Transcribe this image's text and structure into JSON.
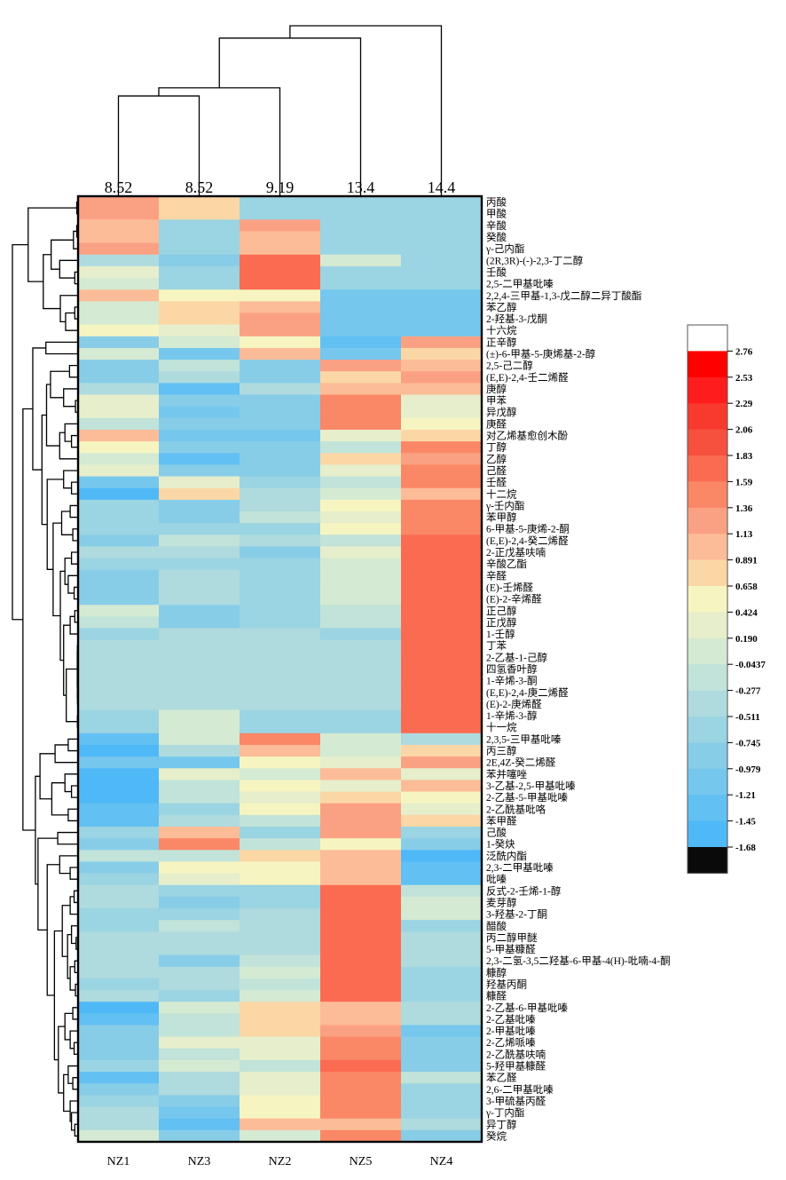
{
  "chart_data": {
    "type": "heatmap",
    "title": "",
    "xlabel": "",
    "ylabel": "",
    "columns": [
      "NZ1",
      "NZ3",
      "NZ2",
      "NZ5",
      "NZ4"
    ],
    "column_cluster_labels": [
      "8.52",
      "8.52",
      "9.19",
      "13.4",
      "14.4"
    ],
    "rows": [
      "丙酸",
      "甲酸",
      "辛酸",
      "癸酸",
      "γ-己内酯",
      "(2R,3R)-(-)-2,3-丁二醇",
      "壬酸",
      "2,5-二甲基吡嗪",
      "2,2,4-三甲基-1,3-戊二醇二异丁酸酯",
      "苯乙醇",
      "2-羟基-3-戊酮",
      "十六烷",
      "正辛醇",
      "(±)-6-甲基-5-庚烯基-2-醇",
      "2,5-己二醇",
      "(E,E)-2,4-壬二烯醛",
      "庚醇",
      "甲苯",
      "异戊醇",
      "庚醛",
      "对乙烯基愈创木酚",
      "丁醇",
      "乙醇",
      "己醛",
      "壬醛",
      "十二烷",
      "γ-壬内酯",
      "苯甲醇",
      "6-甲基-5-庚烯-2-酮",
      "(E,E)-2,4-癸二烯醛",
      "2-正戊基呋喃",
      "辛酸乙酯",
      "辛醛",
      "(E)-壬烯醛",
      "(E)-2-辛烯醛",
      "正己醇",
      "正戊醇",
      "1-壬醇",
      "丁苯",
      "2-乙基-1-己醇",
      "四氢香叶醇",
      "1-辛烯-3-酮",
      "(E,E)-2,4-庚二烯醛",
      "(E)-2-庚烯醛",
      "1-辛烯-3-醇",
      "十一烷",
      "2,3,5-三甲基吡嗪",
      "丙三醇",
      "2E,4Z-癸二烯醛",
      "苯并噻唑",
      "3-乙基-2,5-甲基吡嗪",
      "2-乙基-5-甲基吡嗪",
      "2-乙酰基吡咯",
      "苯甲醛",
      "己酸",
      "1-癸炔",
      "泛酰内酯",
      "2,3-二甲基吡嗪",
      "吡嗪",
      "反式-2-壬烯-1-醇",
      "麦芽醇",
      "3-羟基-2-丁酮",
      "醋酸",
      "丙二醇甲醚",
      "5-甲基糠醛",
      "2,3-二氢-3,5二羟基-6-甲基-4(H)-吡喃-4-酮",
      "糠醇",
      "羟基丙酮",
      "糠醛",
      "2-乙基-6-甲基吡嗪",
      "2-乙基吡嗪",
      "2-甲基吡嗪",
      "2-乙烯哌嗪",
      "2-乙酰基呋喃",
      "5-羟甲基糠醛",
      "苯乙醛",
      "2,6-二甲基吡嗪",
      "3-甲硫基丙醛",
      "γ-丁内酯",
      "异丁醇",
      "癸烷"
    ],
    "values": [
      [
        1.25,
        0.77,
        -0.63,
        -0.63,
        -0.63
      ],
      [
        1.25,
        0.77,
        -0.63,
        -0.63,
        -0.63
      ],
      [
        1.01,
        -0.63,
        1.25,
        -0.63,
        -0.63
      ],
      [
        1.01,
        -0.63,
        1.01,
        -0.63,
        -0.63
      ],
      [
        1.25,
        -0.63,
        1.01,
        -0.63,
        -0.63
      ],
      [
        -0.39,
        -0.86,
        1.71,
        0.07,
        -0.63
      ],
      [
        0.31,
        -0.63,
        1.71,
        -0.63,
        -0.63
      ],
      [
        0.07,
        -0.63,
        1.71,
        -0.63,
        -0.63
      ],
      [
        1.01,
        0.54,
        0.54,
        -1.09,
        -1.09
      ],
      [
        0.07,
        0.77,
        1.01,
        -1.09,
        -1.09
      ],
      [
        0.07,
        0.77,
        1.25,
        -1.09,
        -1.09
      ],
      [
        0.54,
        0.31,
        1.25,
        -1.09,
        -1.09
      ],
      [
        -0.86,
        0.07,
        0.54,
        -1.33,
        1.25
      ],
      [
        0.07,
        -1.09,
        1.01,
        -1.09,
        0.77
      ],
      [
        -0.86,
        -0.16,
        -0.86,
        1.25,
        1.01
      ],
      [
        -0.86,
        -0.39,
        -0.86,
        0.77,
        1.25
      ],
      [
        -0.39,
        -1.33,
        -0.39,
        1.01,
        1.01
      ],
      [
        0.31,
        -0.86,
        -0.86,
        1.48,
        0.31
      ],
      [
        0.31,
        -1.09,
        -0.86,
        1.48,
        0.31
      ],
      [
        -0.16,
        -0.86,
        -0.86,
        1.48,
        0.54
      ],
      [
        1.01,
        -1.09,
        -1.09,
        0.31,
        0.77
      ],
      [
        0.54,
        -0.86,
        -0.86,
        -0.16,
        1.48
      ],
      [
        0.07,
        -1.33,
        -0.86,
        0.77,
        1.25
      ],
      [
        0.31,
        -0.86,
        -0.86,
        0.31,
        1.48
      ],
      [
        -1.09,
        0.31,
        -0.63,
        -0.16,
        1.48
      ],
      [
        -1.56,
        0.77,
        -0.39,
        0.07,
        1.01
      ],
      [
        -0.63,
        -0.86,
        -0.39,
        0.54,
        1.48
      ],
      [
        -0.63,
        -0.86,
        -0.16,
        0.31,
        1.48
      ],
      [
        -0.63,
        -0.63,
        -0.63,
        0.54,
        1.48
      ],
      [
        -0.86,
        -0.16,
        -0.39,
        -0.16,
        1.71
      ],
      [
        -0.39,
        -0.39,
        -0.86,
        0.31,
        1.71
      ],
      [
        -0.63,
        -0.63,
        -0.63,
        0.07,
        1.71
      ],
      [
        -0.86,
        -0.39,
        -0.63,
        0.07,
        1.71
      ],
      [
        -0.86,
        -0.39,
        -0.63,
        0.07,
        1.71
      ],
      [
        -0.86,
        -0.39,
        -0.63,
        0.07,
        1.71
      ],
      [
        0.07,
        -0.86,
        -0.63,
        -0.16,
        1.71
      ],
      [
        -0.16,
        -0.86,
        -0.63,
        -0.16,
        1.71
      ],
      [
        -0.63,
        -0.39,
        -0.39,
        -0.63,
        1.71
      ],
      [
        -0.39,
        -0.39,
        -0.39,
        -0.39,
        1.71
      ],
      [
        -0.39,
        -0.39,
        -0.39,
        -0.39,
        1.71
      ],
      [
        -0.39,
        -0.39,
        -0.39,
        -0.39,
        1.71
      ],
      [
        -0.39,
        -0.39,
        -0.39,
        -0.39,
        1.71
      ],
      [
        -0.39,
        -0.39,
        -0.39,
        -0.39,
        1.71
      ],
      [
        -0.39,
        -0.39,
        -0.39,
        -0.39,
        1.71
      ],
      [
        -0.63,
        0.07,
        -0.63,
        -0.63,
        1.71
      ],
      [
        -0.63,
        0.07,
        -0.63,
        -0.63,
        1.71
      ],
      [
        -1.33,
        0.07,
        1.48,
        0.07,
        -0.39
      ],
      [
        -1.56,
        -0.39,
        1.01,
        0.07,
        0.77
      ],
      [
        -1.09,
        -1.09,
        0.54,
        0.31,
        1.25
      ],
      [
        -1.56,
        0.31,
        0.07,
        1.01,
        0.31
      ],
      [
        -1.56,
        -0.16,
        0.54,
        0.31,
        1.01
      ],
      [
        -1.56,
        -0.16,
        0.31,
        0.77,
        0.54
      ],
      [
        -1.33,
        -0.63,
        0.54,
        1.25,
        0.31
      ],
      [
        -1.33,
        -0.39,
        -0.16,
        1.25,
        0.77
      ],
      [
        -0.63,
        1.01,
        -0.63,
        1.25,
        -0.63
      ],
      [
        -0.86,
        1.48,
        -0.16,
        0.54,
        -0.86
      ],
      [
        -0.16,
        -0.16,
        0.77,
        1.01,
        -1.56
      ],
      [
        -0.86,
        0.54,
        0.54,
        1.01,
        -1.33
      ],
      [
        -0.63,
        0.31,
        0.54,
        1.01,
        -1.33
      ],
      [
        -0.39,
        -0.63,
        -0.63,
        1.71,
        -0.16
      ],
      [
        -0.39,
        -0.86,
        -0.63,
        1.71,
        0.07
      ],
      [
        -0.63,
        -0.63,
        -0.39,
        1.71,
        0.07
      ],
      [
        -0.63,
        -0.16,
        -0.39,
        1.71,
        -0.63
      ],
      [
        -0.39,
        -0.39,
        -0.39,
        1.71,
        -0.39
      ],
      [
        -0.39,
        -0.39,
        -0.39,
        1.71,
        -0.39
      ],
      [
        -0.39,
        -0.86,
        -0.16,
        1.71,
        -0.39
      ],
      [
        -0.39,
        -0.39,
        0.07,
        1.71,
        -0.63
      ],
      [
        -0.63,
        -0.39,
        -0.16,
        1.71,
        -0.63
      ],
      [
        -0.39,
        -0.63,
        0.07,
        1.71,
        -0.63
      ],
      [
        -1.56,
        0.07,
        0.77,
        1.01,
        -0.39
      ],
      [
        -1.33,
        -0.16,
        0.77,
        1.01,
        -0.39
      ],
      [
        -0.86,
        -0.16,
        0.77,
        1.25,
        -1.09
      ],
      [
        -0.86,
        0.31,
        0.31,
        1.48,
        -0.86
      ],
      [
        -0.86,
        -0.16,
        0.31,
        1.48,
        -0.86
      ],
      [
        -0.63,
        0.07,
        -0.16,
        1.71,
        -0.86
      ],
      [
        -1.33,
        -0.39,
        0.31,
        1.48,
        -0.16
      ],
      [
        -0.86,
        -0.39,
        0.31,
        1.48,
        -0.63
      ],
      [
        -0.63,
        -0.86,
        0.54,
        1.48,
        -0.63
      ],
      [
        -0.39,
        -1.09,
        0.54,
        1.48,
        -0.63
      ],
      [
        -0.39,
        -1.33,
        1.01,
        1.01,
        -0.39
      ],
      [
        0.07,
        -0.86,
        0.07,
        1.48,
        -0.86
      ]
    ],
    "legend": {
      "position": "right",
      "ticks": [
        2.76,
        2.53,
        2.29,
        2.06,
        1.83,
        1.59,
        1.36,
        1.13,
        0.891,
        0.658,
        0.424,
        0.19,
        -0.0437,
        -0.277,
        -0.511,
        -0.745,
        -0.979,
        -1.21,
        -1.45,
        -1.68
      ],
      "tick_labels": [
        "2.76",
        "2.53",
        "2.29",
        "2.06",
        "1.83",
        "1.59",
        "1.36",
        "1.13",
        "0.891",
        "0.658",
        "0.424",
        "0.190",
        "-0.0437",
        "-0.277",
        "-0.511",
        "-0.745",
        "-0.979",
        "-1.21",
        "-1.45",
        "-1.68"
      ],
      "colors": [
        "#FFFFFF",
        "#FF0000",
        "#FE1C1C",
        "#F83A2E",
        "#F6503E",
        "#FB6B52",
        "#FA8766",
        "#FBA183",
        "#FCBC97",
        "#FBD7A6",
        "#F6F5C1",
        "#E6EECB",
        "#D5EAD3",
        "#C1E3D9",
        "#AFDBDE",
        "#9BD4E2",
        "#88CDE8",
        "#76C7ED",
        "#62C0F3",
        "#4FB9F8",
        "#0A0A0A"
      ]
    },
    "column_dendrogram": {
      "root": "root",
      "nodes": {
        "root": {
          "h": 1.0,
          "c": [
            "cA",
            4
          ]
        },
        "cA": {
          "h": 0.927,
          "c": [
            "cB",
            3
          ]
        },
        "cB": {
          "h": 0.634,
          "c": [
            "cC",
            2
          ]
        },
        "cC": {
          "h": 0.586,
          "c": [
            0,
            1
          ]
        }
      }
    },
    "row_dendrogram": {
      "root": "root",
      "nodes": {
        "root": {
          "h": 1.0,
          "c": [
            "A",
            "B"
          ]
        },
        "A": {
          "h": 0.76,
          "c": [
            "a01",
            "Ay"
          ]
        },
        "a01": {
          "h": 0.02,
          "c": [
            0,
            1
          ]
        },
        "Ay": {
          "h": 0.53,
          "c": [
            "A1",
            "A2"
          ]
        },
        "A1": {
          "h": 0.41,
          "c": [
            "a234",
            "a567"
          ]
        },
        "a234": {
          "h": 0.07,
          "c": [
            "a23",
            4
          ]
        },
        "a23": {
          "h": 0.02,
          "c": [
            2,
            3
          ]
        },
        "a567": {
          "h": 0.28,
          "c": [
            5,
            "a67"
          ]
        },
        "a67": {
          "h": 0.05,
          "c": [
            6,
            7
          ]
        },
        "A2": {
          "h": 0.27,
          "c": [
            8,
            "a91011"
          ]
        },
        "a91011": {
          "h": 0.19,
          "c": [
            "a910",
            11
          ]
        },
        "a910": {
          "h": 0.05,
          "c": [
            9,
            10
          ]
        },
        "B": {
          "h": 0.84,
          "c": [
            "B1",
            "B2"
          ]
        },
        "B1": {
          "h": 0.69,
          "c": [
            "b1213",
            "B1b"
          ]
        },
        "b1213": {
          "h": 0.49,
          "c": [
            12,
            13
          ]
        },
        "B1b": {
          "h": 0.55,
          "c": [
            "B1c",
            "B1d"
          ]
        },
        "B1c": {
          "h": 0.48,
          "c": [
            "c1",
            "c2"
          ]
        },
        "c1": {
          "h": 0.42,
          "c": [
            "c1415",
            "c1618"
          ]
        },
        "c1415": {
          "h": 0.13,
          "c": [
            14,
            15
          ]
        },
        "c1618": {
          "h": 0.22,
          "c": [
            16,
            "c1718"
          ]
        },
        "c1718": {
          "h": 0.04,
          "c": [
            17,
            18
          ]
        },
        "c2": {
          "h": 0.28,
          "c": [
            "c1921",
            22
          ]
        },
        "c1921": {
          "h": 0.2,
          "c": [
            19,
            "c2021"
          ]
        },
        "c2021": {
          "h": 0.1,
          "c": [
            20,
            21
          ]
        },
        "B1d": {
          "h": 0.47,
          "c": [
            "d2325",
            "B1e"
          ]
        },
        "d2325": {
          "h": 0.22,
          "c": [
            23,
            "d2425"
          ]
        },
        "d2425": {
          "h": 0.1,
          "c": [
            24,
            25
          ]
        },
        "B1e": {
          "h": 0.38,
          "c": [
            "e2629",
            "B1f"
          ]
        },
        "e2629": {
          "h": 0.25,
          "c": [
            "e2627",
            "e2829"
          ]
        },
        "e2627": {
          "h": 0.12,
          "c": [
            26,
            27
          ]
        },
        "e2829": {
          "h": 0.08,
          "c": [
            28,
            29
          ]
        },
        "B1f": {
          "h": 0.27,
          "c": [
            "f1",
            "f2"
          ]
        },
        "f1": {
          "h": 0.2,
          "c": [
            "f3031",
            "f3234"
          ]
        },
        "f3031": {
          "h": 0.1,
          "c": [
            30,
            31
          ]
        },
        "f3234": {
          "h": 0.15,
          "c": [
            32,
            "f3334"
          ]
        },
        "f3334": {
          "h": 0.06,
          "c": [
            33,
            34
          ]
        },
        "f2": {
          "h": 0.22,
          "c": [
            "f3537",
            "f3845"
          ]
        },
        "f3537": {
          "h": 0.12,
          "c": [
            "f3536",
            37
          ]
        },
        "f3536": {
          "h": 0.05,
          "c": [
            35,
            36
          ]
        },
        "f3845": {
          "h": 0.18,
          "c": [
            "f3843",
            "f4445"
          ]
        },
        "f3843": {
          "h": 0.012,
          "c": [
            "f3839",
            "f4043"
          ]
        },
        "f3839": {
          "h": 0.01,
          "c": [
            38,
            39
          ]
        },
        "f4043": {
          "h": 0.01,
          "c": [
            "f4041",
            "f4243"
          ]
        },
        "f4041": {
          "h": 0.008,
          "c": [
            40,
            41
          ]
        },
        "f4243": {
          "h": 0.008,
          "c": [
            42,
            43
          ]
        },
        "f4445": {
          "h": 0.01,
          "c": [
            44,
            45
          ]
        },
        "B2": {
          "h": 0.65,
          "c": [
            "B2a",
            "B2b"
          ]
        },
        "B2a": {
          "h": 0.58,
          "c": [
            "g4648",
            "g4953"
          ]
        },
        "g4648": {
          "h": 0.35,
          "c": [
            "g4647",
            48
          ]
        },
        "g4647": {
          "h": 0.15,
          "c": [
            46,
            47
          ]
        },
        "g4953": {
          "h": 0.4,
          "c": [
            "g4951",
            "g5253"
          ]
        },
        "g4951": {
          "h": 0.2,
          "c": [
            49,
            "g5051"
          ]
        },
        "g5051": {
          "h": 0.1,
          "c": [
            50,
            51
          ]
        },
        "g5253": {
          "h": 0.15,
          "c": [
            52,
            53
          ]
        },
        "B2b": {
          "h": 0.61,
          "c": [
            "h5455",
            "B2c"
          ]
        },
        "h5455": {
          "h": 0.31,
          "c": [
            54,
            55
          ]
        },
        "B2c": {
          "h": 0.47,
          "c": [
            "h5658",
            "B2d"
          ]
        },
        "h5658": {
          "h": 0.28,
          "c": [
            56,
            "h5758"
          ]
        },
        "h5758": {
          "h": 0.12,
          "c": [
            57,
            58
          ]
        },
        "B2d": {
          "h": 0.36,
          "c": [
            "B2e",
            "B2f"
          ]
        },
        "B2e": {
          "h": 0.24,
          "c": [
            "i5961",
            "i6268"
          ]
        },
        "i5961": {
          "h": 0.12,
          "c": [
            "i5960",
            61
          ]
        },
        "i5960": {
          "h": 0.06,
          "c": [
            59,
            60
          ]
        },
        "i6268": {
          "h": 0.16,
          "c": [
            "i6264",
            "i6568"
          ]
        },
        "i6264": {
          "h": 0.1,
          "c": [
            62,
            "i6364"
          ]
        },
        "i6364": {
          "h": 0.03,
          "c": [
            63,
            64
          ]
        },
        "i6568": {
          "h": 0.12,
          "c": [
            "i6566",
            "i6768"
          ]
        },
        "i6566": {
          "h": 0.05,
          "c": [
            65,
            66
          ]
        },
        "i6768": {
          "h": 0.04,
          "c": [
            67,
            68
          ]
        },
        "B2f": {
          "h": 0.3,
          "c": [
            "j6973",
            "j7480"
          ]
        },
        "j6973": {
          "h": 0.2,
          "c": [
            "j6970",
            "j7173"
          ]
        },
        "j6970": {
          "h": 0.08,
          "c": [
            69,
            70
          ]
        },
        "j7173": {
          "h": 0.12,
          "c": [
            71,
            "j7273"
          ]
        },
        "j7273": {
          "h": 0.06,
          "c": [
            72,
            73
          ]
        },
        "j7480": {
          "h": 0.22,
          "c": [
            "j7476",
            "j7780"
          ]
        },
        "j7476": {
          "h": 0.15,
          "c": [
            74,
            "j7576"
          ]
        },
        "j7576": {
          "h": 0.08,
          "c": [
            75,
            76
          ]
        },
        "j7780": {
          "h": 0.12,
          "c": [
            77,
            "j7880"
          ]
        },
        "j7880": {
          "h": 0.1,
          "c": [
            78,
            "j7980"
          ]
        },
        "j7980": {
          "h": 0.05,
          "c": [
            79,
            80
          ]
        }
      }
    }
  }
}
